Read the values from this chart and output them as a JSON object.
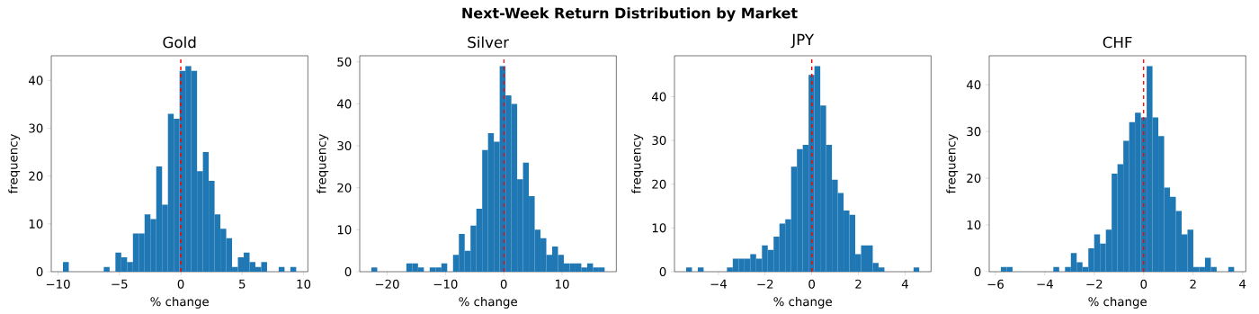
{
  "chart_data": [
    {
      "type": "histogram",
      "title": "Gold",
      "xlabel": "% change",
      "ylabel": "frequency",
      "color": "#1f77b4",
      "annotations": [
        "Next-Week Return Distribution by Market"
      ],
      "bins": [
        -9.6,
        -9.125,
        -8.65,
        -8.175,
        -7.7,
        -7.225,
        -6.75,
        -6.275,
        -5.8,
        -5.325,
        -4.85,
        -4.375,
        -3.9,
        -3.425,
        -2.95,
        -2.475,
        -2,
        -1.525,
        -1.05,
        -0.575,
        -0.1,
        0.375,
        0.85,
        1.325,
        1.8,
        2.275,
        2.75,
        3.225,
        3.7,
        4.175,
        4.65,
        5.125,
        5.6,
        6.075,
        6.55,
        7.025,
        7.5,
        7.975,
        8.45,
        8.925,
        9.4
      ],
      "values": [
        2,
        0,
        0,
        0,
        0,
        0,
        0,
        1,
        0,
        4,
        3,
        2,
        8,
        8,
        12,
        11,
        22,
        14,
        33,
        32,
        42,
        43,
        42,
        21,
        25,
        19,
        12,
        9,
        7,
        1,
        3,
        4,
        2,
        1,
        2,
        0,
        0,
        1,
        0,
        1
      ],
      "xlim": [
        -10.55,
        10.35
      ],
      "ylim": [
        0,
        45.15
      ],
      "xticks": [
        {
          "value": -10,
          "label": "−10"
        },
        {
          "value": -5,
          "label": "−5"
        },
        0,
        5,
        10
      ],
      "yticks": [
        0,
        10,
        20,
        30,
        40
      ],
      "ref_lines": [
        {
          "axis": "x",
          "value": 0,
          "color": "#ff0000",
          "line_style": "dashed"
        }
      ]
    },
    {
      "type": "histogram",
      "title": "Silver",
      "xlabel": "% change",
      "ylabel": "frequency",
      "color": "#1f77b4",
      "bins": [
        -22.7,
        -21.7,
        -20.7,
        -19.7,
        -18.7,
        -17.7,
        -16.7,
        -15.7,
        -14.7,
        -13.7,
        -12.7,
        -11.7,
        -10.7,
        -9.7,
        -8.7,
        -7.7,
        -6.7,
        -5.7,
        -4.7,
        -3.7,
        -2.7,
        -1.7,
        -0.7,
        0.3,
        1.3,
        2.3,
        3.3,
        4.3,
        5.3,
        6.3,
        7.3,
        8.3,
        9.3,
        10.3,
        11.3,
        12.3,
        13.3,
        14.3,
        15.3,
        16.3,
        17.3
      ],
      "values": [
        1,
        0,
        0,
        0,
        0,
        0,
        2,
        2,
        1,
        0,
        1,
        1,
        2,
        0,
        4,
        9,
        5,
        11,
        15,
        29,
        33,
        31,
        49,
        42,
        40,
        22,
        26,
        18,
        10,
        8,
        4,
        6,
        4,
        2,
        2,
        2,
        1,
        2,
        1,
        1
      ],
      "xlim": [
        -24.7,
        19.3
      ],
      "ylim": [
        0,
        51.45
      ],
      "xticks": [
        {
          "value": -20,
          "label": "−20"
        },
        {
          "value": -10,
          "label": "−10"
        },
        0,
        10
      ],
      "yticks": [
        0,
        10,
        20,
        30,
        40,
        50
      ],
      "ref_lines": [
        {
          "axis": "x",
          "value": 0,
          "color": "#ff0000",
          "line_style": "dashed"
        }
      ]
    },
    {
      "type": "histogram",
      "title": "JPY",
      "xlabel": "% change",
      "ylabel": "frequency",
      "color": "#1f77b4",
      "bins": [
        -5.385,
        -5.135,
        -4.885,
        -4.635,
        -4.385,
        -4.135,
        -3.885,
        -3.635,
        -3.385,
        -3.135,
        -2.885,
        -2.635,
        -2.385,
        -2.135,
        -1.885,
        -1.635,
        -1.385,
        -1.135,
        -0.885,
        -0.635,
        -0.385,
        -0.135,
        0.115,
        0.365,
        0.615,
        0.865,
        1.115,
        1.365,
        1.615,
        1.865,
        2.115,
        2.365,
        2.615,
        2.865,
        3.115,
        3.365,
        3.615,
        3.865,
        4.115,
        4.365,
        4.615
      ],
      "values": [
        1,
        0,
        1,
        0,
        0,
        0,
        0,
        1,
        3,
        3,
        3,
        4,
        3,
        6,
        5,
        8,
        11,
        12,
        24,
        28,
        29,
        45,
        47,
        38,
        29,
        21,
        18,
        14,
        13,
        4,
        6,
        6,
        2,
        1,
        0,
        0,
        0,
        0,
        0,
        1
      ],
      "xlim": [
        -5.885,
        5.115
      ],
      "ylim": [
        0,
        49.35
      ],
      "xticks": [
        {
          "value": -4,
          "label": "−4"
        },
        {
          "value": -2,
          "label": "−2"
        },
        0,
        2,
        4
      ],
      "yticks": [
        0,
        10,
        20,
        30,
        40
      ],
      "ref_lines": [
        {
          "axis": "x",
          "value": 0,
          "color": "#ff0000",
          "line_style": "dashed"
        }
      ]
    },
    {
      "type": "histogram",
      "title": "CHF",
      "xlabel": "% change",
      "ylabel": "frequency",
      "color": "#1f77b4",
      "bins": [
        -5.78,
        -5.544,
        -5.308,
        -5.072,
        -4.836,
        -4.6,
        -4.364,
        -4.128,
        -3.892,
        -3.656,
        -3.42,
        -3.184,
        -2.948,
        -2.712,
        -2.476,
        -2.24,
        -2.004,
        -1.768,
        -1.532,
        -1.296,
        -1.06,
        -0.824,
        -0.588,
        -0.352,
        -0.116,
        0.12,
        0.356,
        0.592,
        0.828,
        1.064,
        1.3,
        1.536,
        1.772,
        2.008,
        2.244,
        2.48,
        2.716,
        2.952,
        3.188,
        3.424,
        3.66
      ],
      "values": [
        1,
        1,
        0,
        0,
        0,
        0,
        0,
        0,
        0,
        1,
        0,
        1,
        4,
        2,
        1,
        5,
        8,
        6,
        9,
        21,
        23,
        28,
        32,
        34,
        33,
        44,
        33,
        29,
        18,
        16,
        13,
        8,
        9,
        1,
        1,
        3,
        1,
        0,
        0,
        1
      ],
      "xlim": [
        -6.252,
        4.132
      ],
      "ylim": [
        0,
        46.2
      ],
      "xticks": [
        {
          "value": -6,
          "label": "−6"
        },
        {
          "value": -4,
          "label": "−4"
        },
        {
          "value": -2,
          "label": "−2"
        },
        0,
        2,
        4
      ],
      "yticks": [
        0,
        10,
        20,
        30,
        40
      ],
      "ref_lines": [
        {
          "axis": "x",
          "value": 0,
          "color": "#ff0000",
          "line_style": "dashed"
        }
      ]
    }
  ]
}
